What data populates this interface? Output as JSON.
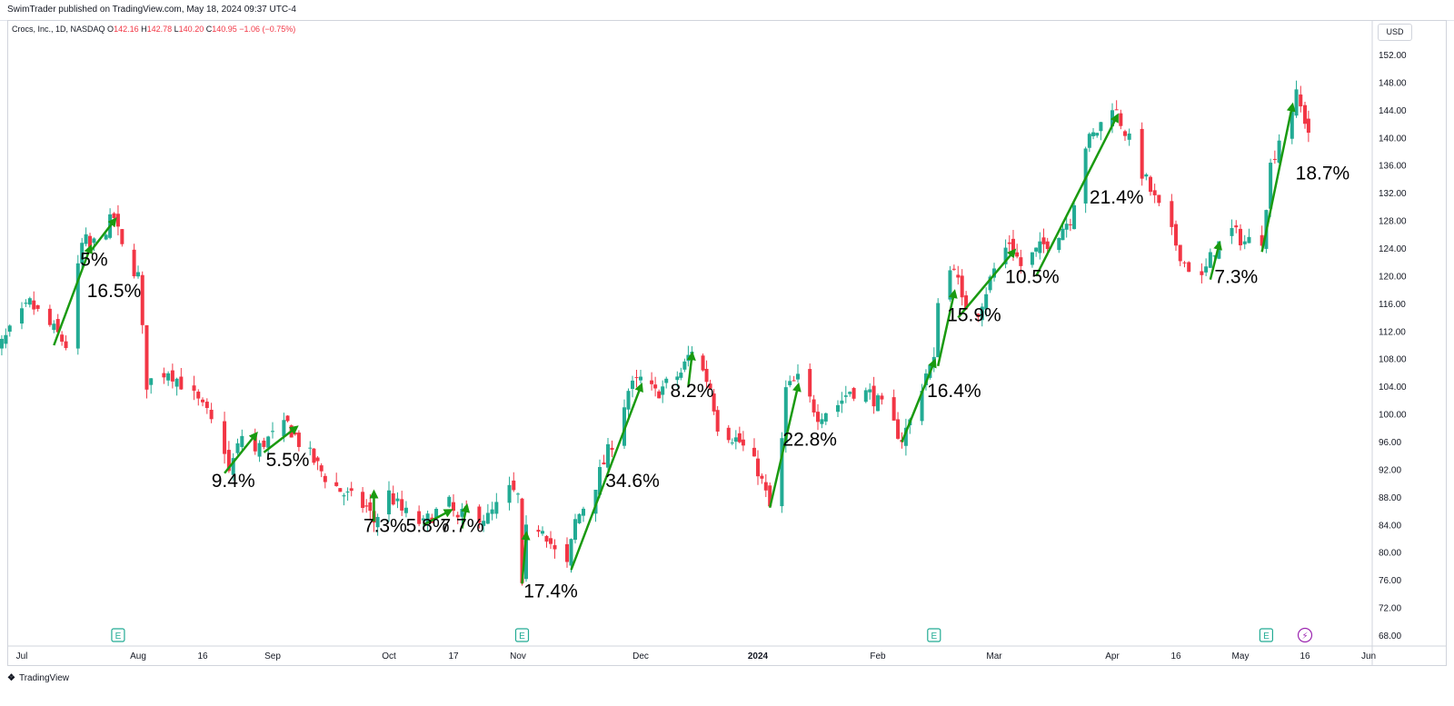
{
  "header": {
    "published": "SwimTrader published on TradingView.com, May 18, 2024 09:37 UTC-4"
  },
  "symbol": {
    "name": "Crocs, Inc., 1D, NASDAQ",
    "o_label": "O",
    "o": "142.16",
    "h_label": "H",
    "h": "142.78",
    "l_label": "L",
    "l": "140.20",
    "c_label": "C",
    "c": "140.95",
    "change": "−1.06 (−0.75%)"
  },
  "currency": "USD",
  "footer": {
    "brand": "TradingView",
    "brand_icon": "tradingview-logo-icon"
  },
  "colors": {
    "up": "#22ab94",
    "down": "#f23645",
    "arrow": "#1a9a10",
    "earnings": "#22ab94",
    "dividend": "#9c27b0"
  },
  "markers": [
    {
      "type": "earnings",
      "label": "E",
      "date": "2023-07-27"
    },
    {
      "type": "earnings",
      "label": "E",
      "date": "2023-11-02"
    },
    {
      "type": "earnings",
      "label": "E",
      "date": "2024-02-15"
    },
    {
      "type": "earnings",
      "label": "E",
      "date": "2024-05-07"
    },
    {
      "type": "dividend",
      "label": "⚡",
      "date": "2024-05-16"
    }
  ],
  "chart_data": {
    "type": "candlestick",
    "title": "Crocs, Inc., 1D, NASDAQ",
    "y_axis": {
      "position": "right",
      "min": 68,
      "max": 152,
      "step": 4,
      "unit": "USD"
    },
    "x_ticks": [
      "Jul",
      "Aug",
      "16",
      "Sep",
      "Oct",
      "17",
      "Nov",
      "Dec",
      "2024",
      "Feb",
      "Mar",
      "Apr",
      "16",
      "May",
      "16",
      "Jun"
    ],
    "x_ticks_bold": [
      "2024"
    ],
    "price_path": [
      {
        "date": "2023-06-26",
        "price": 108.5
      },
      {
        "date": "2023-07-05",
        "price": 116
      },
      {
        "date": "2023-07-12",
        "price": 111.5
      },
      {
        "date": "2023-07-14",
        "price": 110
      },
      {
        "date": "2023-07-18",
        "price": 124.5
      },
      {
        "date": "2023-07-19",
        "price": 125
      },
      {
        "date": "2023-07-20",
        "price": 124
      },
      {
        "date": "2023-07-24",
        "price": 127
      },
      {
        "date": "2023-07-26",
        "price": 128.5
      },
      {
        "date": "2023-07-28",
        "price": 124
      },
      {
        "date": "2023-08-01",
        "price": 120
      },
      {
        "date": "2023-08-02",
        "price": 112
      },
      {
        "date": "2023-08-03",
        "price": 104.5
      },
      {
        "date": "2023-08-08",
        "price": 106.5
      },
      {
        "date": "2023-08-14",
        "price": 102.5
      },
      {
        "date": "2023-08-17",
        "price": 100
      },
      {
        "date": "2023-08-21",
        "price": 95
      },
      {
        "date": "2023-08-22",
        "price": 91.5
      },
      {
        "date": "2023-08-25",
        "price": 97
      },
      {
        "date": "2023-08-28",
        "price": 94.5
      },
      {
        "date": "2023-08-30",
        "price": 96
      },
      {
        "date": "2023-09-05",
        "price": 98.5
      },
      {
        "date": "2023-09-08",
        "price": 96
      },
      {
        "date": "2023-09-11",
        "price": 94
      },
      {
        "date": "2023-09-15",
        "price": 91
      },
      {
        "date": "2023-09-20",
        "price": 88.5
      },
      {
        "date": "2023-09-26",
        "price": 86.5
      },
      {
        "date": "2023-09-28",
        "price": 84.5
      },
      {
        "date": "2023-10-02",
        "price": 88.5
      },
      {
        "date": "2023-10-05",
        "price": 86
      },
      {
        "date": "2023-10-10",
        "price": 84
      },
      {
        "date": "2023-10-12",
        "price": 85.5
      },
      {
        "date": "2023-10-16",
        "price": 87
      },
      {
        "date": "2023-10-18",
        "price": 84.5
      },
      {
        "date": "2023-10-20",
        "price": 86
      },
      {
        "date": "2023-10-25",
        "price": 85
      },
      {
        "date": "2023-10-30",
        "price": 89
      },
      {
        "date": "2023-11-01",
        "price": 88
      },
      {
        "date": "2023-11-02",
        "price": 74.5
      },
      {
        "date": "2023-11-03",
        "price": 83
      },
      {
        "date": "2023-11-07",
        "price": 84
      },
      {
        "date": "2023-11-10",
        "price": 80
      },
      {
        "date": "2023-11-13",
        "price": 78
      },
      {
        "date": "2023-11-15",
        "price": 84.5
      },
      {
        "date": "2023-11-20",
        "price": 90
      },
      {
        "date": "2023-11-24",
        "price": 96
      },
      {
        "date": "2023-11-28",
        "price": 103.5
      },
      {
        "date": "2023-12-01",
        "price": 105
      },
      {
        "date": "2023-12-05",
        "price": 103
      },
      {
        "date": "2023-12-12",
        "price": 106
      },
      {
        "date": "2023-12-15",
        "price": 109.5
      },
      {
        "date": "2023-12-20",
        "price": 104
      },
      {
        "date": "2023-12-22",
        "price": 98.5
      },
      {
        "date": "2023-12-28",
        "price": 96
      },
      {
        "date": "2024-01-02",
        "price": 92
      },
      {
        "date": "2024-01-05",
        "price": 86.5
      },
      {
        "date": "2024-01-08",
        "price": 96
      },
      {
        "date": "2024-01-09",
        "price": 103.5
      },
      {
        "date": "2024-01-12",
        "price": 105
      },
      {
        "date": "2024-01-17",
        "price": 100
      },
      {
        "date": "2024-01-22",
        "price": 101.5
      },
      {
        "date": "2024-01-25",
        "price": 103.5
      },
      {
        "date": "2024-01-30",
        "price": 103
      },
      {
        "date": "2024-02-02",
        "price": 101
      },
      {
        "date": "2024-02-07",
        "price": 96.5
      },
      {
        "date": "2024-02-09",
        "price": 99
      },
      {
        "date": "2024-02-13",
        "price": 106
      },
      {
        "date": "2024-02-15",
        "price": 107.5
      },
      {
        "date": "2024-02-16",
        "price": 117
      },
      {
        "date": "2024-02-20",
        "price": 122
      },
      {
        "date": "2024-02-22",
        "price": 116
      },
      {
        "date": "2024-02-26",
        "price": 115
      },
      {
        "date": "2024-03-01",
        "price": 121
      },
      {
        "date": "2024-03-05",
        "price": 125
      },
      {
        "date": "2024-03-08",
        "price": 121.5
      },
      {
        "date": "2024-03-13",
        "price": 124
      },
      {
        "date": "2024-03-18",
        "price": 126.5
      },
      {
        "date": "2024-03-21",
        "price": 128.5
      },
      {
        "date": "2024-03-25",
        "price": 139
      },
      {
        "date": "2024-03-28",
        "price": 141
      },
      {
        "date": "2024-04-01",
        "price": 145
      },
      {
        "date": "2024-04-04",
        "price": 141
      },
      {
        "date": "2024-04-08",
        "price": 135
      },
      {
        "date": "2024-04-11",
        "price": 131
      },
      {
        "date": "2024-04-15",
        "price": 126
      },
      {
        "date": "2024-04-18",
        "price": 122
      },
      {
        "date": "2024-04-22",
        "price": 119.5
      },
      {
        "date": "2024-04-25",
        "price": 124
      },
      {
        "date": "2024-04-29",
        "price": 126.5
      },
      {
        "date": "2024-05-02",
        "price": 125
      },
      {
        "date": "2024-05-06",
        "price": 125.5
      },
      {
        "date": "2024-05-08",
        "price": 136
      },
      {
        "date": "2024-05-10",
        "price": 140
      },
      {
        "date": "2024-05-14",
        "price": 146
      },
      {
        "date": "2024-05-17",
        "price": 140.95
      }
    ],
    "annotations": [
      {
        "label": "5%",
        "date": "2023-07-21",
        "price": 121.5
      },
      {
        "label": "16.5%",
        "date": "2023-07-26",
        "price": 117
      },
      {
        "label": "9.4%",
        "date": "2023-08-23",
        "price": 89.5
      },
      {
        "label": "5.5%",
        "date": "2023-09-05",
        "price": 92.5
      },
      {
        "label": "7.3%",
        "date": "2023-10-01",
        "price": 83
      },
      {
        "label": "5.8%",
        "date": "2023-10-11",
        "price": 83
      },
      {
        "label": "7.7%",
        "date": "2023-10-19",
        "price": 83
      },
      {
        "label": "17.4%",
        "date": "2023-11-09",
        "price": 73.5
      },
      {
        "label": "34.6%",
        "date": "2023-11-29",
        "price": 89.5
      },
      {
        "label": "8.2%",
        "date": "2023-12-15",
        "price": 102.5
      },
      {
        "label": "22.8%",
        "date": "2024-01-15",
        "price": 95.5
      },
      {
        "label": "16.4%",
        "date": "2024-02-20",
        "price": 102.5
      },
      {
        "label": "15.9%",
        "date": "2024-02-25",
        "price": 113.5
      },
      {
        "label": "10.5%",
        "date": "2024-03-11",
        "price": 119
      },
      {
        "label": "21.4%",
        "date": "2024-04-02",
        "price": 130.5
      },
      {
        "label": "7.3%",
        "date": "2024-04-30",
        "price": 119
      },
      {
        "label": "18.7%",
        "date": "2024-05-21",
        "price": 134
      }
    ],
    "arrows": [
      {
        "from": {
          "date": "2023-07-11",
          "price": 110
        },
        "to": {
          "date": "2023-07-20",
          "price": 124
        }
      },
      {
        "from": {
          "date": "2023-07-20",
          "price": 123.5
        },
        "to": {
          "date": "2023-07-26",
          "price": 128
        }
      },
      {
        "from": {
          "date": "2023-08-21",
          "price": 91.5
        },
        "to": {
          "date": "2023-08-28",
          "price": 97
        }
      },
      {
        "from": {
          "date": "2023-08-30",
          "price": 94.5
        },
        "to": {
          "date": "2023-09-07",
          "price": 98
        }
      },
      {
        "from": {
          "date": "2023-09-28",
          "price": 84.5
        },
        "to": {
          "date": "2023-09-28",
          "price": 88.5
        }
      },
      {
        "from": {
          "date": "2023-10-10",
          "price": 84
        },
        "to": {
          "date": "2023-10-16",
          "price": 86
        }
      },
      {
        "from": {
          "date": "2023-10-19",
          "price": 83.5
        },
        "to": {
          "date": "2023-10-20",
          "price": 86.5
        }
      },
      {
        "from": {
          "date": "2023-11-02",
          "price": 75.5
        },
        "to": {
          "date": "2023-11-03",
          "price": 82.5
        }
      },
      {
        "from": {
          "date": "2023-11-14",
          "price": 77.5
        },
        "to": {
          "date": "2023-12-01",
          "price": 104
        }
      },
      {
        "from": {
          "date": "2023-12-14",
          "price": 104
        },
        "to": {
          "date": "2023-12-15",
          "price": 108.5
        }
      },
      {
        "from": {
          "date": "2024-01-05",
          "price": 86.5
        },
        "to": {
          "date": "2024-01-12",
          "price": 104
        }
      },
      {
        "from": {
          "date": "2024-02-07",
          "price": 96
        },
        "to": {
          "date": "2024-02-15",
          "price": 107.5
        }
      },
      {
        "from": {
          "date": "2024-02-16",
          "price": 107
        },
        "to": {
          "date": "2024-02-20",
          "price": 117.5
        }
      },
      {
        "from": {
          "date": "2024-02-21",
          "price": 114
        },
        "to": {
          "date": "2024-03-06",
          "price": 123.5
        }
      },
      {
        "from": {
          "date": "2024-03-12",
          "price": 120
        },
        "to": {
          "date": "2024-04-02",
          "price": 143
        }
      },
      {
        "from": {
          "date": "2024-04-24",
          "price": 119.5
        },
        "to": {
          "date": "2024-04-26",
          "price": 124.5
        }
      },
      {
        "from": {
          "date": "2024-05-06",
          "price": 123.5
        },
        "to": {
          "date": "2024-05-13",
          "price": 144.5
        }
      }
    ]
  }
}
